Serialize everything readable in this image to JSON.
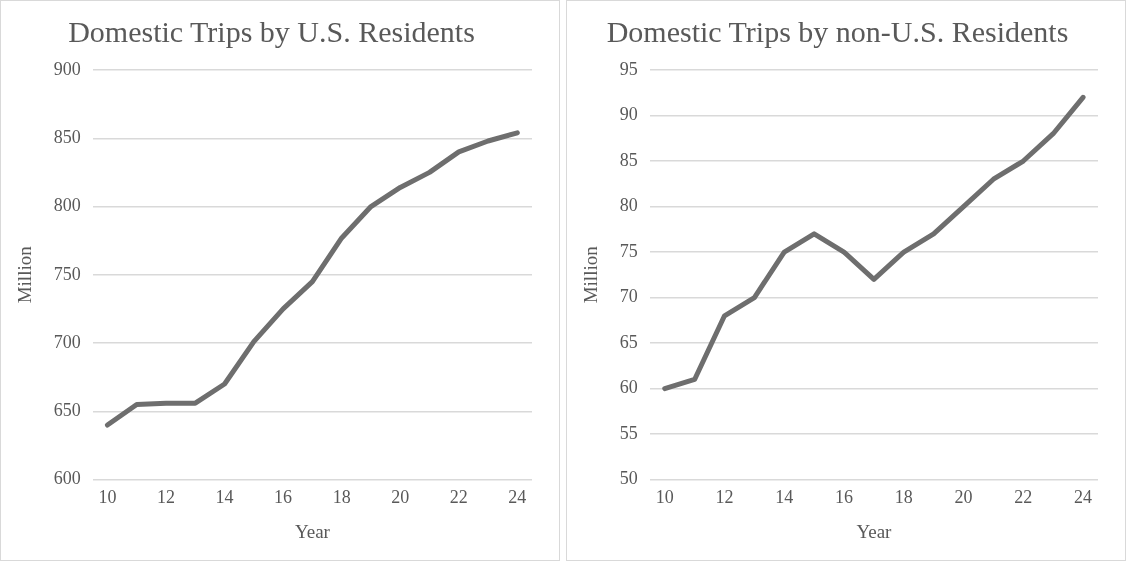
{
  "chart_data": [
    {
      "type": "line",
      "title": "Domestic Trips by U.S. Residents",
      "xlabel": "Year",
      "ylabel": "Million",
      "categories": [
        "10",
        null,
        "12",
        null,
        "14",
        null,
        "16",
        null,
        "18",
        null,
        "20",
        null,
        "22",
        null,
        "24"
      ],
      "series": [
        {
          "color": "#6e6e6e",
          "values": [
            640,
            655,
            656,
            656,
            670,
            701,
            725,
            745,
            777,
            800,
            814,
            825,
            840,
            848,
            854
          ]
        }
      ],
      "ylim": [
        600,
        900
      ],
      "yticks": [
        600,
        650,
        700,
        750,
        800,
        850,
        900
      ],
      "grid": "y",
      "legend": false,
      "marker": "none",
      "line_style": "solid"
    },
    {
      "type": "line",
      "title": "Domestic Trips by non-U.S. Residents",
      "xlabel": "Year",
      "ylabel": "Million",
      "categories": [
        "10",
        null,
        "12",
        null,
        "14",
        null,
        "16",
        null,
        "18",
        null,
        "20",
        null,
        "22",
        null,
        "24"
      ],
      "series": [
        {
          "color": "#6e6e6e",
          "values": [
            60,
            61,
            68,
            70,
            75,
            77,
            75,
            72,
            75,
            77,
            80,
            83,
            85,
            88,
            92
          ]
        }
      ],
      "ylim": [
        50,
        95
      ],
      "yticks": [
        50,
        55,
        60,
        65,
        70,
        75,
        80,
        85,
        90,
        95
      ],
      "grid": "y",
      "legend": false,
      "marker": "none",
      "line_style": "solid"
    }
  ]
}
